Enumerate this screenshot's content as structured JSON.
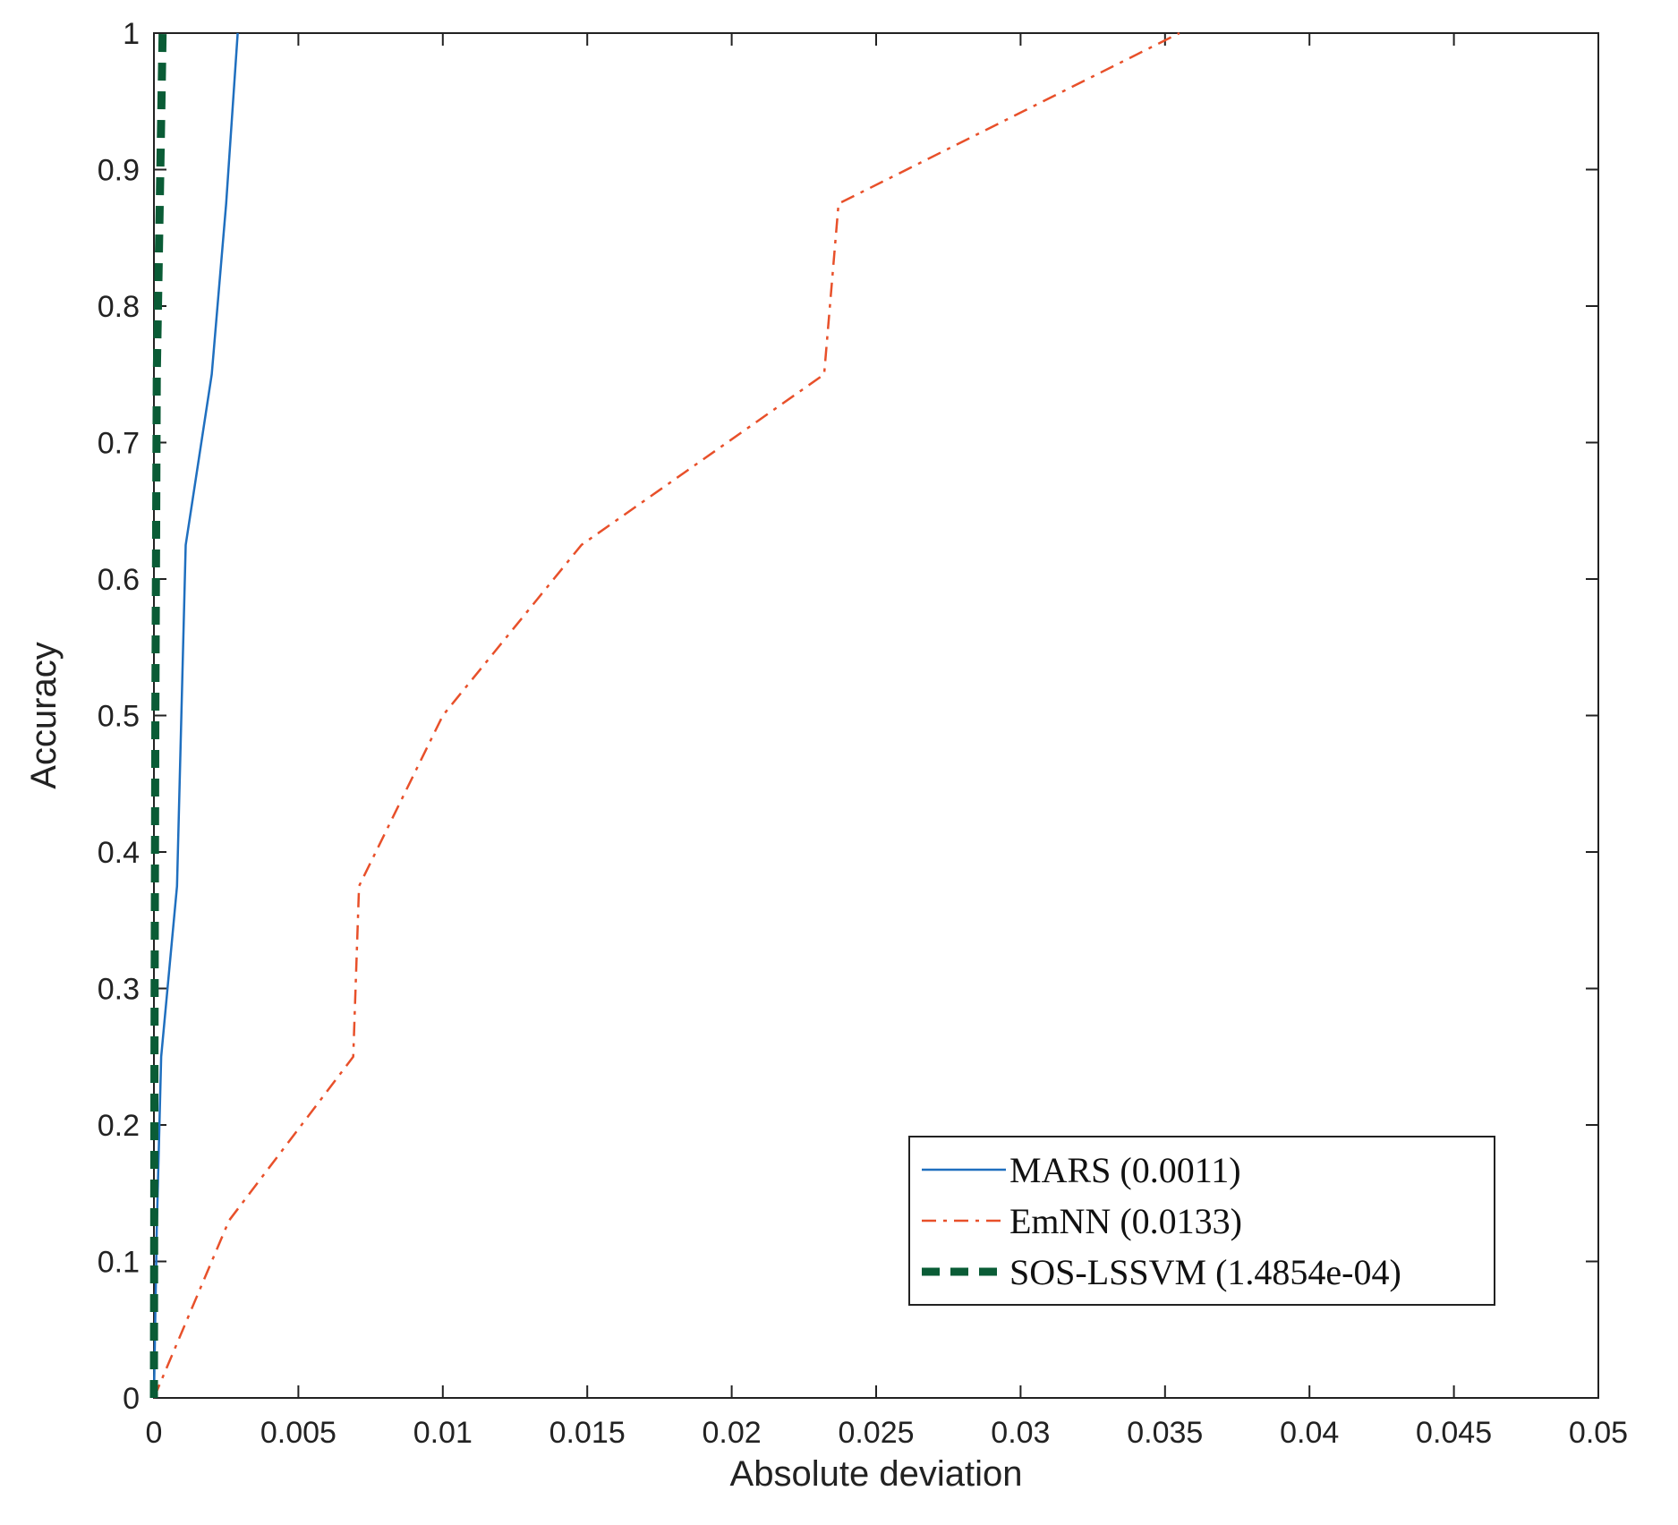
{
  "chart_data": {
    "type": "line",
    "title": "",
    "xlabel": "Absolute deviation",
    "ylabel": "Accuracy",
    "xlim": [
      0,
      0.05
    ],
    "ylim": [
      0,
      1
    ],
    "xticks": [
      0,
      0.005,
      0.01,
      0.015,
      0.02,
      0.025,
      0.03,
      0.035,
      0.04,
      0.045,
      0.05
    ],
    "xtick_labels": [
      "0",
      "0.005",
      "0.01",
      "0.015",
      "0.02",
      "0.025",
      "0.03",
      "0.035",
      "0.04",
      "0.045",
      "0.05"
    ],
    "yticks": [
      0,
      0.1,
      0.2,
      0.3,
      0.4,
      0.5,
      0.6,
      0.7,
      0.8,
      0.9,
      1
    ],
    "ytick_labels": [
      "0",
      "0.1",
      "0.2",
      "0.3",
      "0.4",
      "0.5",
      "0.6",
      "0.7",
      "0.8",
      "0.9",
      "1"
    ],
    "grid": false,
    "legend_position": "bottom-right",
    "series": [
      {
        "name": "MARS (0.0011)",
        "color": "#1f6fbf",
        "style": "solid",
        "points": [
          [
            0,
            0
          ],
          [
            0.0001,
            0.125
          ],
          [
            0.00025,
            0.25
          ],
          [
            0.0008,
            0.375
          ],
          [
            0.0011,
            0.625
          ],
          [
            0.002,
            0.75
          ],
          [
            0.0025,
            0.875
          ],
          [
            0.0029,
            1.0
          ]
        ]
      },
      {
        "name": "EmNN (0.0133)",
        "color": "#e8502a",
        "style": "dashdot",
        "points": [
          [
            0,
            0
          ],
          [
            0.0026,
            0.13
          ],
          [
            0.0069,
            0.25
          ],
          [
            0.0071,
            0.375
          ],
          [
            0.01,
            0.5
          ],
          [
            0.0148,
            0.625
          ],
          [
            0.0232,
            0.75
          ],
          [
            0.0237,
            0.875
          ],
          [
            0.0355,
            1.0
          ]
        ]
      },
      {
        "name": "SOS-LSSVM (1.4854e-04)",
        "color": "#0a5c36",
        "style": "dashed",
        "points": [
          [
            0,
            0
          ],
          [
            2e-05,
            0.25
          ],
          [
            5e-05,
            0.5
          ],
          [
            0.0001,
            0.75
          ],
          [
            0.0002,
            0.875
          ],
          [
            0.0003,
            1.0
          ]
        ]
      }
    ]
  }
}
